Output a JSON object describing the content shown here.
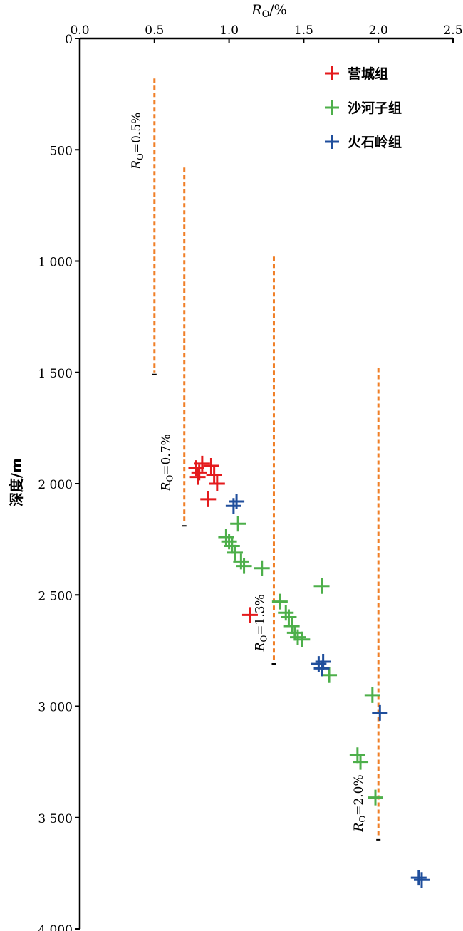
{
  "chart_data": {
    "type": "scatter",
    "xlabel": "R",
    "xlabel_sub": "O",
    "xlabel_unit": "/%",
    "ylabel": "深度/m",
    "xlim": [
      0,
      2.5
    ],
    "ylim": [
      0,
      4000
    ],
    "y_inverted": true,
    "x_axis_position": "top",
    "x_ticks": [
      0.0,
      0.5,
      1.0,
      1.5,
      2.0,
      2.5
    ],
    "x_tick_labels": [
      "0.0",
      "0.5",
      "1.0",
      "1.5",
      "2.0",
      "2.5"
    ],
    "y_ticks": [
      0,
      500,
      1000,
      1500,
      2000,
      2500,
      3000,
      3500,
      4000
    ],
    "y_tick_labels": [
      "0",
      "500",
      "1 000",
      "1 500",
      "2 000",
      "2 500",
      "3 000",
      "3 500",
      "4 000"
    ],
    "grid": false,
    "legend_position": "top-right",
    "colors": {
      "营城组": "#e41a1c",
      "沙河子组": "#4daf4a",
      "火石岭组": "#1f4e9c",
      "reference": "#f07f27"
    },
    "series": [
      {
        "name": "营城组",
        "marker": "plus",
        "x": [
          0.78,
          0.8,
          0.82,
          0.79,
          0.88,
          0.9,
          0.92,
          0.86,
          1.14
        ],
        "y": [
          1930,
          1950,
          1910,
          1970,
          1920,
          1960,
          2000,
          2070,
          2590
        ]
      },
      {
        "name": "沙河子组",
        "marker": "plus",
        "x": [
          1.06,
          0.98,
          1.0,
          1.02,
          1.04,
          1.08,
          1.1,
          1.22,
          1.62,
          1.34,
          1.38,
          1.4,
          1.42,
          1.44,
          1.46,
          1.49,
          1.67,
          1.96,
          1.86,
          1.88,
          1.98
        ],
        "y": [
          2180,
          2240,
          2260,
          2280,
          2310,
          2350,
          2370,
          2380,
          2460,
          2530,
          2580,
          2600,
          2640,
          2670,
          2690,
          2700,
          2860,
          2950,
          3220,
          3250,
          3410
        ]
      },
      {
        "name": "火石岭组",
        "marker": "plus",
        "x": [
          1.03,
          1.05,
          1.6,
          1.62,
          1.63,
          2.01,
          2.27,
          2.29
        ],
        "y": [
          2100,
          2080,
          2810,
          2830,
          2800,
          3030,
          3770,
          3780
        ]
      }
    ],
    "reference_lines": [
      {
        "label": "R",
        "sub": "O",
        "value": "=0.5%",
        "x": 0.5,
        "y_start": 180,
        "y_end": 1500
      },
      {
        "label": "R",
        "sub": "O",
        "value": "=0.7%",
        "x": 0.7,
        "y_start": 580,
        "y_end": 2180
      },
      {
        "label": "R",
        "sub": "O",
        "value": "=1.3%",
        "x": 1.3,
        "y_start": 980,
        "y_end": 2800
      },
      {
        "label": "R",
        "sub": "O",
        "value": "=2.0%",
        "x": 2.0,
        "y_start": 1480,
        "y_end": 3590
      }
    ]
  }
}
